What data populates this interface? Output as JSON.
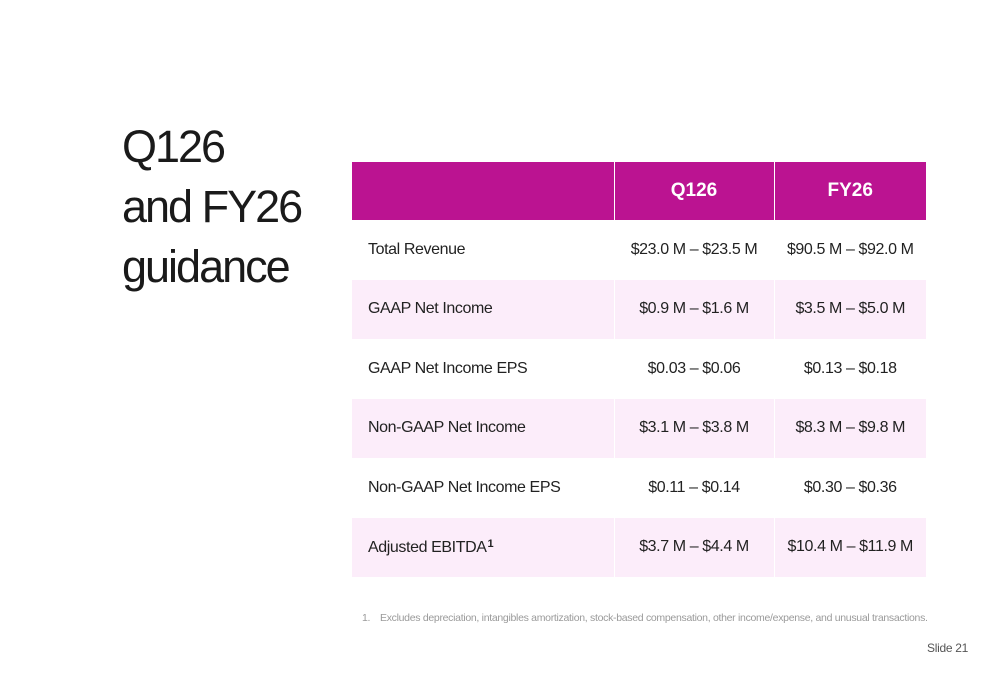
{
  "title": {
    "lines": [
      "Q126",
      "and FY26",
      "guidance"
    ]
  },
  "table": {
    "headers": [
      "",
      "Q126",
      "FY26"
    ],
    "rows": [
      {
        "metric": "Total Revenue",
        "q126": "$23.0 M – $23.5 M",
        "fy26": "$90.5 M – $92.0 M"
      },
      {
        "metric": "GAAP Net Income",
        "q126": "$0.9 M – $1.6 M",
        "fy26": "$3.5 M – $5.0 M"
      },
      {
        "metric": "GAAP Net Income EPS",
        "q126": "$0.03 – $0.06",
        "fy26": "$0.13 – $0.18"
      },
      {
        "metric": "Non-GAAP Net Income",
        "q126": "$3.1 M – $3.8 M",
        "fy26": "$8.3 M – $9.8 M"
      },
      {
        "metric": "Non-GAAP Net Income EPS",
        "q126": "$0.11 – $0.14",
        "fy26": "$0.30 – $0.36"
      },
      {
        "metric": "Adjusted EBITDA",
        "footnote_ref": "1",
        "q126": "$3.7 M – $4.4 M",
        "fy26": "$10.4 M – $11.9 M"
      }
    ]
  },
  "footnote": {
    "number": "1.",
    "text": "Excludes depreciation, intangibles amortization, stock-based compensation, other income/expense, and unusual transactions."
  },
  "slide_label": "Slide 21",
  "colors": {
    "header_bg": "#bb1391",
    "shaded_row_bg": "#fcedfa"
  }
}
